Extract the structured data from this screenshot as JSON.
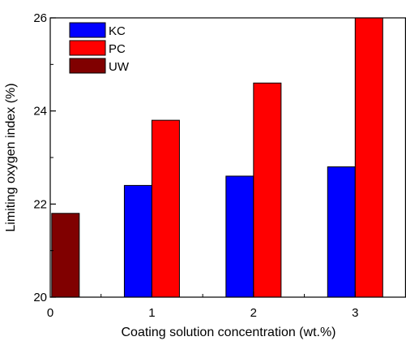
{
  "chart_data": {
    "type": "bar",
    "title": "",
    "xlabel": "Coating solution concentration (wt.%)",
    "ylabel": "Limiting oxygen index (%)",
    "x_ticks": [
      "0",
      "1",
      "2",
      "3"
    ],
    "y_ticks": [
      "20",
      "22",
      "24",
      "26"
    ],
    "xlim": [
      0,
      3.5
    ],
    "ylim": [
      20,
      26
    ],
    "grid": false,
    "legend_position": "top-left",
    "series": [
      {
        "name": "KC",
        "color": "#0000ff",
        "points": [
          {
            "x": 1,
            "y": 22.4
          },
          {
            "x": 2,
            "y": 22.6
          },
          {
            "x": 3,
            "y": 22.8
          }
        ]
      },
      {
        "name": "PC",
        "color": "#ff0000",
        "points": [
          {
            "x": 1,
            "y": 23.8
          },
          {
            "x": 2,
            "y": 24.6
          },
          {
            "x": 3,
            "y": 26.0
          }
        ]
      },
      {
        "name": "UW",
        "color": "#800000",
        "points": [
          {
            "x": 0.15,
            "y": 21.8
          }
        ]
      }
    ]
  }
}
